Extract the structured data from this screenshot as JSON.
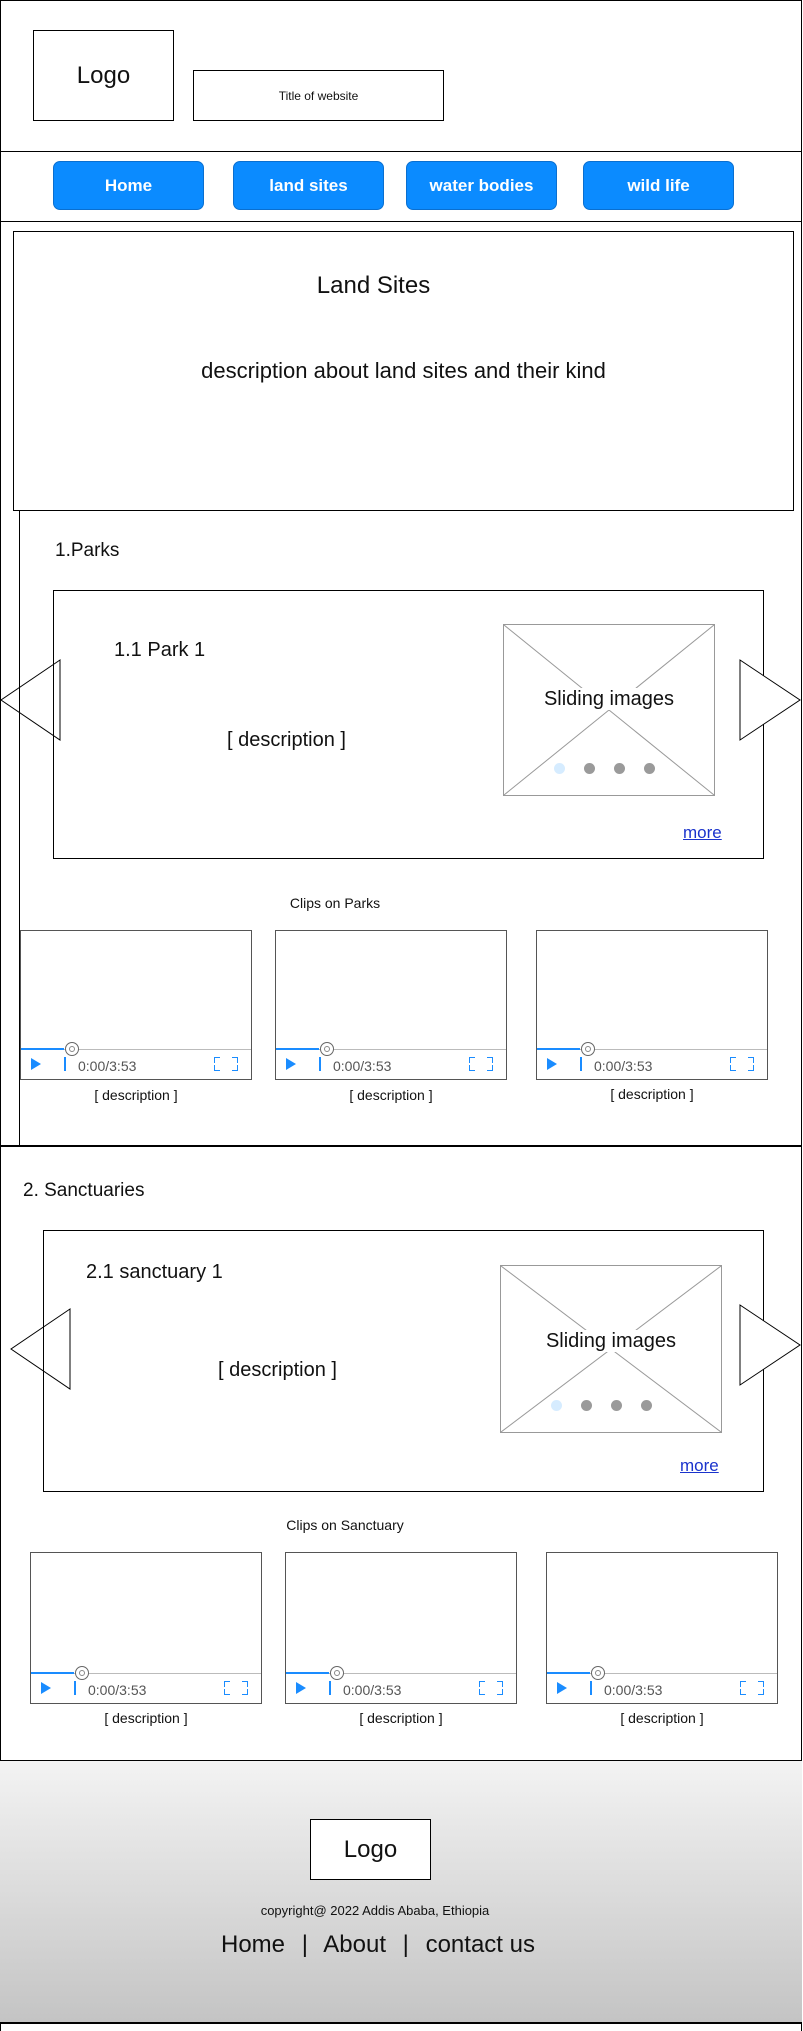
{
  "header": {
    "logo": "Logo",
    "title": "Title of website"
  },
  "nav": {
    "items": [
      "Home",
      "land sites",
      "water bodies",
      "wild life"
    ]
  },
  "intro": {
    "title": "Land Sites",
    "description": "description about land sites and their kind"
  },
  "sections": [
    {
      "heading": "1.Parks",
      "card_title": "1.1 Park 1",
      "card_description": "[ description ]",
      "slider_label": "Sliding images",
      "more": "more",
      "clips_title": "Clips on Parks",
      "videos": [
        {
          "time": "0:00/3:53",
          "caption": "[ description ]"
        },
        {
          "time": "0:00/3:53",
          "caption": "[ description ]"
        },
        {
          "time": "0:00/3:53",
          "caption": "[ description ]"
        }
      ]
    },
    {
      "heading": "2. Sanctuaries",
      "card_title": "2.1 sanctuary 1",
      "card_description": "[ description ]",
      "slider_label": "Sliding images",
      "more": "more",
      "clips_title": "Clips on Sanctuary",
      "videos": [
        {
          "time": "0:00/3:53",
          "caption": "[ description ]"
        },
        {
          "time": "0:00/3:53",
          "caption": "[ description ]"
        },
        {
          "time": "0:00/3:53",
          "caption": "[ description ]"
        }
      ]
    }
  ],
  "footer": {
    "logo": "Logo",
    "copyright": "copyright@ 2022 Addis Ababa, Ethiopia",
    "links": [
      "Home",
      "About",
      "contact us"
    ],
    "separator": "|"
  },
  "icons": {
    "play": "play-icon",
    "volume": "volume-icon",
    "fullscreen": "fullscreen-icon",
    "arrow_left": "arrow-left-icon",
    "arrow_right": "arrow-right-icon"
  },
  "colors": {
    "accent": "#0b8bff",
    "link": "#1a33cc"
  }
}
